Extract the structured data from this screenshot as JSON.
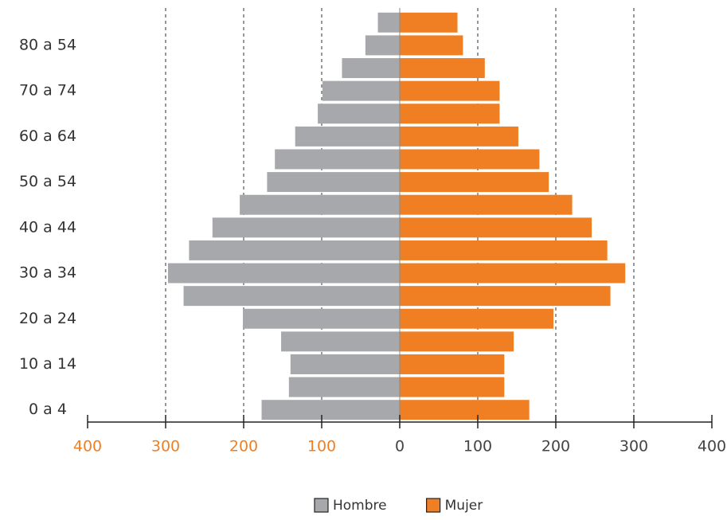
{
  "chart_data": {
    "type": "pyramid",
    "categories": [
      "0 a 4",
      null,
      "10 a 14",
      null,
      "20 a 24",
      null,
      "30 a 34",
      null,
      "40 a 44",
      null,
      "50 a 54",
      null,
      "60 a 64",
      null,
      "70 a 74",
      null,
      "80 a 54",
      null
    ],
    "series": [
      {
        "name": "Hombre",
        "color": "#a7a8ab",
        "side": "left",
        "values": [
          177,
          142,
          140,
          152,
          201,
          277,
          297,
          270,
          240,
          205,
          170,
          160,
          134,
          105,
          99,
          74,
          44,
          28
        ]
      },
      {
        "name": "Mujer",
        "color": "#f07f24",
        "side": "right",
        "values": [
          166,
          134,
          134,
          146,
          197,
          270,
          289,
          266,
          246,
          221,
          191,
          179,
          152,
          128,
          128,
          109,
          81,
          74
        ]
      }
    ],
    "xlim": [
      -400,
      400
    ],
    "xticks": [
      {
        "value": -400,
        "label": "400"
      },
      {
        "value": -300,
        "label": "300"
      },
      {
        "value": -200,
        "label": "200"
      },
      {
        "value": -100,
        "label": "100"
      },
      0,
      100,
      200,
      300,
      400
    ],
    "left_tick_color": "#f07f24",
    "right_tick_color": "#444444",
    "grid": true
  }
}
